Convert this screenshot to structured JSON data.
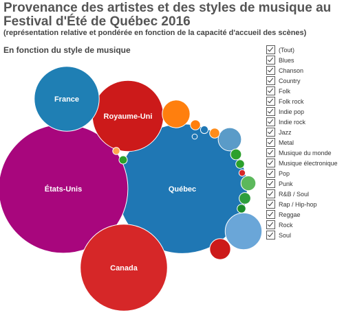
{
  "header": {
    "title": "Provenance des artistes et des styles de musique au Festival d'Été de Québec 2016",
    "subtitle": "(représentation relative et pondérée en fonction de la capacité d'accueil des scènes)",
    "section_label": "En fonction du style de musique"
  },
  "filters": [
    {
      "label": "(Tout)",
      "checked": true
    },
    {
      "label": "Blues",
      "checked": true
    },
    {
      "label": "Chanson",
      "checked": true
    },
    {
      "label": "Country",
      "checked": true
    },
    {
      "label": "Folk",
      "checked": true
    },
    {
      "label": "Folk rock",
      "checked": true
    },
    {
      "label": "Indie pop",
      "checked": true
    },
    {
      "label": "Indie rock",
      "checked": true
    },
    {
      "label": "Jazz",
      "checked": true
    },
    {
      "label": "Metal",
      "checked": true
    },
    {
      "label": "Musique du monde",
      "checked": true
    },
    {
      "label": "Musique électronique",
      "checked": true
    },
    {
      "label": "Pop",
      "checked": true
    },
    {
      "label": "Punk",
      "checked": true
    },
    {
      "label": "R&B / Soul",
      "checked": true
    },
    {
      "label": "Rap / Hip-hop",
      "checked": true
    },
    {
      "label": "Reggae",
      "checked": true
    },
    {
      "label": "Rock",
      "checked": true
    },
    {
      "label": "Soul",
      "checked": true
    }
  ],
  "chart_data": {
    "type": "bubble",
    "bubbles": [
      {
        "label": "Québec",
        "value": 100,
        "color": "#1f77b4"
      },
      {
        "label": "États-Unis",
        "value": 99,
        "color": "#a8067d"
      },
      {
        "label": "Canada",
        "value": 45,
        "color": "#d62728"
      },
      {
        "label": "Royaume-Uni",
        "value": 30,
        "color": "#cc1a1a"
      },
      {
        "label": "France",
        "value": 25,
        "color": "#1f7fb4"
      },
      {
        "label": "",
        "value": 8,
        "color": "#6aa6d8"
      },
      {
        "label": "",
        "value": 4.6,
        "color": "#ff7f0e"
      },
      {
        "label": "",
        "value": 3.2,
        "color": "#5a9bc8"
      },
      {
        "label": "",
        "value": 2.6,
        "color": "#cc1a1a"
      },
      {
        "label": "",
        "value": 1.3,
        "color": "#5cb85c"
      },
      {
        "label": "",
        "value": 0.8,
        "color": "#2e9e3e"
      },
      {
        "label": "",
        "value": 0.7,
        "color": "#2ca02c"
      },
      {
        "label": "",
        "value": 0.6,
        "color": "#ff7f0e"
      },
      {
        "label": "",
        "value": 0.6,
        "color": "#ff8c1a"
      },
      {
        "label": "",
        "value": 0.45,
        "color": "#2ca02c"
      },
      {
        "label": "",
        "value": 0.45,
        "color": "#1c8c2c"
      },
      {
        "label": "",
        "value": 0.4,
        "color": "#2ca02c"
      },
      {
        "label": "",
        "value": 0.35,
        "color": "#1f77b4"
      },
      {
        "label": "",
        "value": 0.3,
        "color": "#ffa64d"
      },
      {
        "label": "",
        "value": 0.25,
        "color": "#d62728"
      },
      {
        "label": "",
        "value": 0.16,
        "color": "#1f77b4"
      }
    ]
  }
}
